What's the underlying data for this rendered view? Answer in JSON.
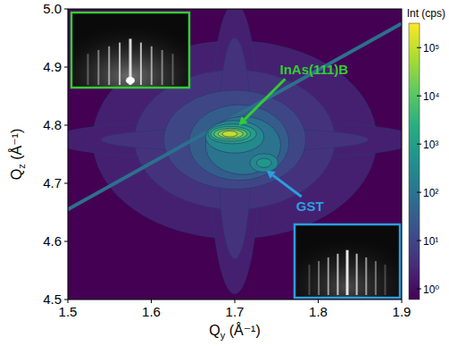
{
  "chart_data": {
    "type": "contour",
    "x_label": "Qy (Å⁻¹)",
    "y_label": "Qz (Å⁻¹)",
    "xlim": [
      1.5,
      1.9
    ],
    "ylim": [
      4.5,
      5.0
    ],
    "xticks": [
      1.5,
      1.6,
      1.7,
      1.8,
      1.9
    ],
    "yticks": [
      4.5,
      4.6,
      4.7,
      4.8,
      4.9,
      {
        "value": 5,
        "label": "5.0"
      }
    ],
    "colorbar": {
      "label": "Int (cps)",
      "log": true,
      "lim": [
        0.6,
        320000
      ],
      "ticks": [
        {
          "value": 1,
          "label": "10⁰"
        },
        {
          "value": 10,
          "label": "10¹"
        },
        {
          "value": 100,
          "label": "10²"
        },
        {
          "value": 1000,
          "label": "10³"
        },
        {
          "value": 10000,
          "label": "10⁴"
        },
        {
          "value": 100000,
          "label": "10⁵"
        }
      ]
    },
    "contours": [
      {
        "qy": 1.7,
        "qz": 4.775,
        "dqy": 0.17,
        "dqz": 0.17,
        "level": 2
      },
      {
        "qy": 1.7,
        "qz": 4.775,
        "dqy": 0.22,
        "dqz": 0.035,
        "level": 2
      },
      {
        "qy": 1.7,
        "qz": 4.76,
        "dqy": 0.03,
        "dqz": 0.25,
        "level": 2
      },
      {
        "qy": 1.7,
        "qz": 4.775,
        "dqy": 0.12,
        "dqz": 0.12,
        "level": 4
      },
      {
        "qy": 1.7,
        "qz": 4.775,
        "dqy": 0.16,
        "dqz": 0.02,
        "level": 4
      },
      {
        "qy": 1.7,
        "qz": 4.76,
        "dqy": 0.02,
        "dqz": 0.19,
        "level": 4
      },
      {
        "qy": 1.7,
        "qz": 4.775,
        "dqy": 0.085,
        "dqz": 0.085,
        "level": 10
      },
      {
        "qy": 1.705,
        "qz": 4.77,
        "dqy": 0.06,
        "dqz": 0.065,
        "level": 30
      },
      {
        "qy": 1.71,
        "qz": 4.765,
        "dqy": 0.045,
        "dqz": 0.05,
        "level": 100
      },
      {
        "qy": 1.7,
        "qz": 4.78,
        "dqy": 0.035,
        "dqz": 0.028,
        "level": 300
      },
      {
        "qy": 1.735,
        "qz": 4.735,
        "dqy": 0.017,
        "dqz": 0.016,
        "level": 300
      },
      {
        "qy": 1.735,
        "qz": 4.735,
        "dqy": 0.009,
        "dqz": 0.008,
        "level": 600
      },
      {
        "qy": 1.697,
        "qz": 4.785,
        "dqy": 0.029,
        "dqz": 0.017,
        "level": 1000
      },
      {
        "qy": 1.695,
        "qz": 4.785,
        "dqy": 0.024,
        "dqz": 0.013,
        "level": 3000
      },
      {
        "qy": 1.695,
        "qz": 4.785,
        "dqy": 0.02,
        "dqz": 0.01,
        "level": 10000
      },
      {
        "qy": 1.695,
        "qz": 4.785,
        "dqy": 0.015,
        "dqz": 0.0075,
        "level": 30000
      },
      {
        "qy": 1.694,
        "qz": 4.785,
        "dqy": 0.009,
        "dqz": 0.005,
        "level": 100000
      }
    ],
    "streaks": [
      {
        "from": [
          1.5,
          4.655
        ],
        "to": [
          1.9,
          4.975
        ],
        "level": 80
      }
    ],
    "annotations": [
      {
        "text": "InAs(111)B",
        "x": 1.795,
        "y": 4.895,
        "xy": [
          1.705,
          4.8
        ],
        "color": "#33cc33"
      },
      {
        "text": "GST",
        "x": 1.79,
        "y": 4.66,
        "xy": [
          1.738,
          4.722
        ],
        "color": "#2a9fe0"
      }
    ]
  }
}
